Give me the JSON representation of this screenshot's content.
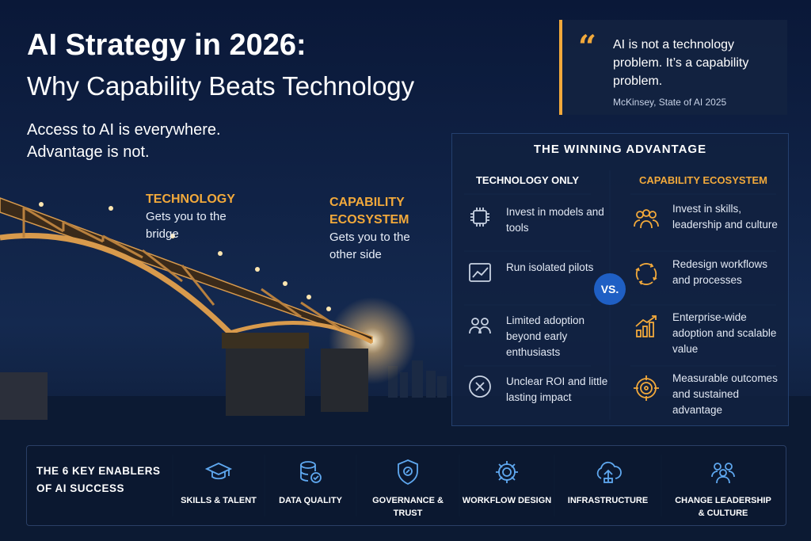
{
  "header": {
    "title": "AI Strategy in 2026:",
    "subtitle": "Why Capability Beats Technology",
    "tagline": "Access to AI is everywhere. Advantage is not."
  },
  "quote": {
    "text": "AI is not a technology problem. It’s a capability problem.",
    "source": "McKinsey, State of AI 2025"
  },
  "callouts": [
    {
      "title": "TECHNOLOGY",
      "text": "Gets you to the bridge"
    },
    {
      "title": "CAPABILITY ECOSYSTEM",
      "text": "Gets you to the other side"
    }
  ],
  "comparison": {
    "title": "THE WINNING ADVANTAGE",
    "separator": "VS.",
    "columns": [
      {
        "heading": "TECHNOLOGY ONLY",
        "items": [
          "Invest in models and tools",
          "Run isolated pilots",
          "Limited adoption beyond early enthusiasts",
          "Unclear ROI and little lasting impact"
        ]
      },
      {
        "heading": "CAPABILITY ECOSYSTEM",
        "items": [
          "Invest in skills, leadership and culture",
          "Redesign workflows and processes",
          "Enterprise-wide adoption and scalable value",
          "Measurable outcomes and sustained advantage"
        ]
      }
    ]
  },
  "enablers": {
    "title": "THE 6 KEY ENABLERS OF AI SUCCESS",
    "items": [
      "SKILLS & TALENT",
      "DATA QUALITY",
      "GOVERNANCE & TRUST",
      "WORKFLOW DESIGN",
      "INFRASTRUCTURE",
      "CHANGE LEADERSHIP & CULTURE"
    ]
  }
}
